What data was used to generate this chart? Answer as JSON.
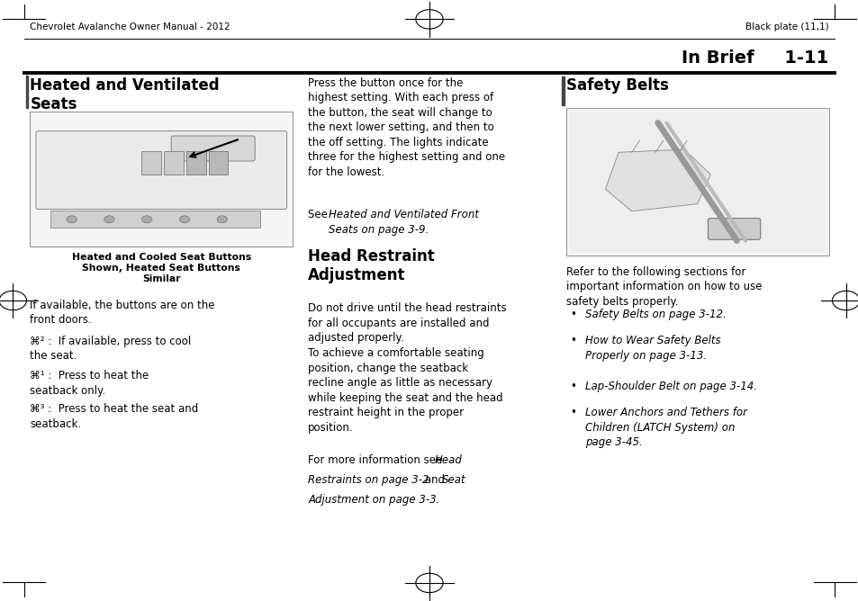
{
  "bg_color": "#ffffff",
  "header_left": "Chevrolet Avalanche Owner Manual - 2012",
  "header_right": "Black plate (11,1)",
  "section_label": "In Brief",
  "section_page": "1-11",
  "col1_title": "Heated and Ventilated\nSeats",
  "col1_caption": "Heated and Cooled Seat Buttons\nShown, Heated Seat Buttons\nSimilar",
  "col1_para1": "If available, the buttons are on the\nfront doors.",
  "col1_icon1": "⌘² :  If available, press to cool\nthe seat.",
  "col1_icon2": "⌘¹ :  Press to heat the\nseatback only.",
  "col1_icon3": "⌘³ :  Press to heat the seat and\nseatback.",
  "col2_body_top": "Press the button once for the\nhighest setting. With each press of\nthe button, the seat will change to\nthe next lower setting, and then to\nthe off setting. The lights indicate\nthree for the highest setting and one\nfor the lowest.",
  "col2_see_prefix": "See ",
  "col2_see_italic": "Heated and Ventilated Front\nSeats on page 3-9.",
  "col2_title2": "Head Restraint\nAdjustment",
  "col2_body2a": "Do not drive until the head restraints\nfor all occupants are installed and\nadjusted properly.",
  "col2_body2b": "To achieve a comfortable seating\nposition, change the seatback\nrecline angle as little as necessary\nwhile keeping the seat and the head\nrestraint height in the proper\nposition.",
  "col2_body2c_normal": "For more information see ",
  "col2_body2c_italic": "Head\nRestraints on page 3-2",
  "col2_body2c_normal2": " and ",
  "col2_body2c_italic2": "Seat\nAdjustment on page 3-3.",
  "col3_title": "Safety Belts",
  "col3_body": "Refer to the following sections for\nimportant information on how to use\nsafety belts properly.",
  "col3_bullets": [
    "Safety Belts on page 3-12.",
    "How to Wear Safety Belts\nProperly on page 3-13.",
    "Lap-Shoulder Belt on page 3-14.",
    "Lower Anchors and Tethers for\nChildren (LATCH System) on\npage 3-45."
  ],
  "body_fontsize": 8.5,
  "title_fontsize": 12.0,
  "header_fontsize": 7.5,
  "section_fontsize": 14.0,
  "caption_fontsize": 7.8
}
